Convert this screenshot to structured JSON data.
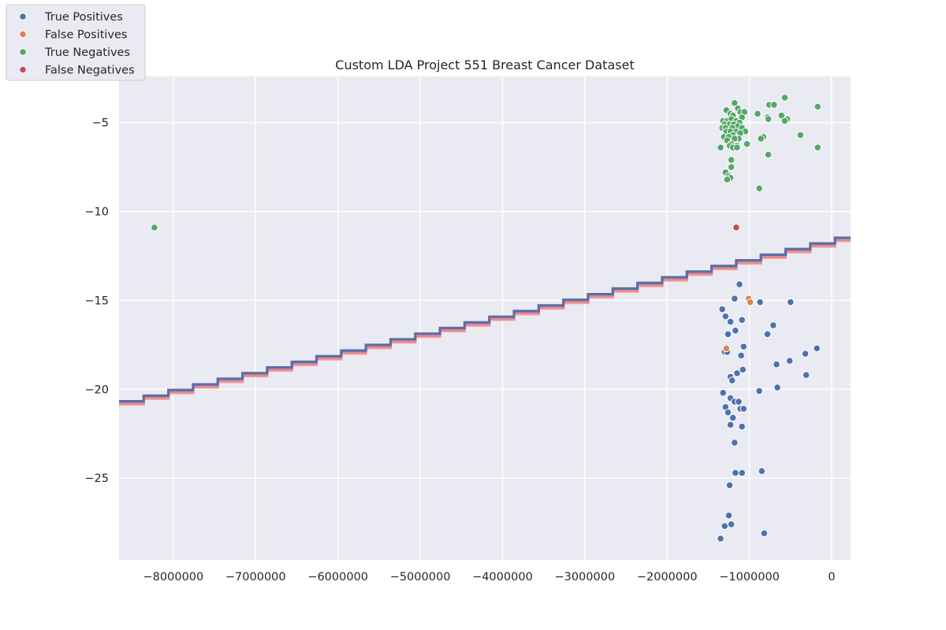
{
  "chart_data": {
    "type": "scatter",
    "title": "Custom LDA Project 551 Breast Cancer Dataset",
    "xlabel": "",
    "ylabel": "",
    "xlim": [
      -8660000,
      230000
    ],
    "ylim": [
      -29.6,
      -2.4
    ],
    "xticks": [
      -8000000,
      -7000000,
      -6000000,
      -5000000,
      -4000000,
      -3000000,
      -2000000,
      -1000000,
      0
    ],
    "xtick_labels": [
      "−8000000",
      "−7000000",
      "−6000000",
      "−5000000",
      "−4000000",
      "−3000000",
      "−2000000",
      "−1000000",
      "0"
    ],
    "yticks": [
      -5,
      -10,
      -15,
      -20,
      -25
    ],
    "ytick_labels": [
      "−5",
      "−10",
      "−15",
      "−20",
      "−25"
    ],
    "grid": true,
    "background": "#eaeaf2",
    "legend_placement": "upper-left, outside axes",
    "series": [
      {
        "name": "True Positives",
        "color": "#4c72b0",
        "points": [
          [
            -1120000,
            -14.1
          ],
          [
            -1180000,
            -14.9
          ],
          [
            -1330000,
            -15.5
          ],
          [
            -1290000,
            -15.9
          ],
          [
            -1230000,
            -16.2
          ],
          [
            -1090000,
            -16.1
          ],
          [
            -1170000,
            -16.7
          ],
          [
            -1260000,
            -16.9
          ],
          [
            -870000,
            -15.1
          ],
          [
            -500000,
            -15.1
          ],
          [
            -710000,
            -16.4
          ],
          [
            -780000,
            -16.9
          ],
          [
            -1070000,
            -17.6
          ],
          [
            -1300000,
            -17.9
          ],
          [
            -1100000,
            -18.1
          ],
          [
            -1270000,
            -17.9
          ],
          [
            -320000,
            -18.0
          ],
          [
            -180000,
            -17.7
          ],
          [
            -510000,
            -18.4
          ],
          [
            -670000,
            -18.6
          ],
          [
            -1080000,
            -18.9
          ],
          [
            -1150000,
            -19.1
          ],
          [
            -1230000,
            -19.3
          ],
          [
            -1210000,
            -19.5
          ],
          [
            -310000,
            -19.2
          ],
          [
            -1320000,
            -20.2
          ],
          [
            -1230000,
            -20.5
          ],
          [
            -1180000,
            -20.7
          ],
          [
            -1130000,
            -20.7
          ],
          [
            -1290000,
            -21.0
          ],
          [
            -1110000,
            -21.1
          ],
          [
            -1070000,
            -21.1
          ],
          [
            -1260000,
            -21.3
          ],
          [
            -1200000,
            -21.6
          ],
          [
            -880000,
            -20.1
          ],
          [
            -660000,
            -19.9
          ],
          [
            -1230000,
            -22.0
          ],
          [
            -1090000,
            -22.1
          ],
          [
            -1180000,
            -23.0
          ],
          [
            -1170000,
            -24.7
          ],
          [
            -1090000,
            -24.7
          ],
          [
            -850000,
            -24.6
          ],
          [
            -1240000,
            -25.4
          ],
          [
            -1250000,
            -27.1
          ],
          [
            -1300000,
            -27.7
          ],
          [
            -1220000,
            -27.6
          ],
          [
            -820000,
            -28.1
          ],
          [
            -1350000,
            -28.4
          ]
        ]
      },
      {
        "name": "False Positives",
        "color": "#dd8452",
        "points": [
          [
            -1010000,
            -14.9
          ],
          [
            -990000,
            -15.1
          ],
          [
            -1280000,
            -17.7
          ]
        ]
      },
      {
        "name": "True Negatives",
        "color": "#55a868",
        "points": [
          [
            -1180000,
            -3.9
          ],
          [
            -1140000,
            -4.2
          ],
          [
            -1280000,
            -4.3
          ],
          [
            -1230000,
            -4.5
          ],
          [
            -1110000,
            -4.4
          ],
          [
            -1060000,
            -4.4
          ],
          [
            -1200000,
            -4.6
          ],
          [
            -1090000,
            -4.7
          ],
          [
            -1320000,
            -4.9
          ],
          [
            -1270000,
            -4.9
          ],
          [
            -1220000,
            -4.8
          ],
          [
            -1160000,
            -4.9
          ],
          [
            -1120000,
            -5.0
          ],
          [
            -1300000,
            -5.1
          ],
          [
            -1240000,
            -5.1
          ],
          [
            -1190000,
            -5.1
          ],
          [
            -1140000,
            -5.2
          ],
          [
            -1330000,
            -5.3
          ],
          [
            -1290000,
            -5.3
          ],
          [
            -1210000,
            -5.3
          ],
          [
            -1090000,
            -5.3
          ],
          [
            -1050000,
            -5.5
          ],
          [
            -1280000,
            -5.5
          ],
          [
            -1230000,
            -5.5
          ],
          [
            -1160000,
            -5.5
          ],
          [
            -1110000,
            -5.6
          ],
          [
            -1310000,
            -5.8
          ],
          [
            -1200000,
            -5.7
          ],
          [
            -1250000,
            -5.8
          ],
          [
            -1130000,
            -5.9
          ],
          [
            -1180000,
            -5.9
          ],
          [
            -1270000,
            -6.0
          ],
          [
            -1220000,
            -6.2
          ],
          [
            -1030000,
            -6.2
          ],
          [
            -1150000,
            -6.3
          ],
          [
            -1240000,
            -6.3
          ],
          [
            -1350000,
            -6.4
          ],
          [
            -1200000,
            -6.4
          ],
          [
            -1150000,
            -6.4
          ],
          [
            -1220000,
            -7.1
          ],
          [
            -1220000,
            -7.5
          ],
          [
            -1290000,
            -7.8
          ],
          [
            -1250000,
            -8.0
          ],
          [
            -1230000,
            -8.1
          ],
          [
            -1270000,
            -8.2
          ],
          [
            -760000,
            -4.0
          ],
          [
            -700000,
            -4.0
          ],
          [
            -570000,
            -3.6
          ],
          [
            -170000,
            -4.1
          ],
          [
            -900000,
            -4.5
          ],
          [
            -780000,
            -4.7
          ],
          [
            -610000,
            -4.6
          ],
          [
            -540000,
            -4.8
          ],
          [
            -570000,
            -4.9
          ],
          [
            -770000,
            -4.8
          ],
          [
            -830000,
            -5.8
          ],
          [
            -860000,
            -5.9
          ],
          [
            -380000,
            -5.7
          ],
          [
            -170000,
            -6.4
          ],
          [
            -770000,
            -6.8
          ],
          [
            -880000,
            -8.7
          ],
          [
            -8230000,
            -10.9
          ]
        ]
      },
      {
        "name": "False Negatives",
        "color": "#c44e52",
        "points": [
          [
            -1160000,
            -10.9
          ]
        ]
      }
    ],
    "decision_boundary": {
      "style": "staircase band",
      "colors": [
        "#5a6ea8",
        "#e8868a",
        "#f3a0a0"
      ],
      "start": [
        -8660000,
        -20.7
      ],
      "end": [
        230000,
        -11.3
      ],
      "step_x": 300000
    }
  }
}
